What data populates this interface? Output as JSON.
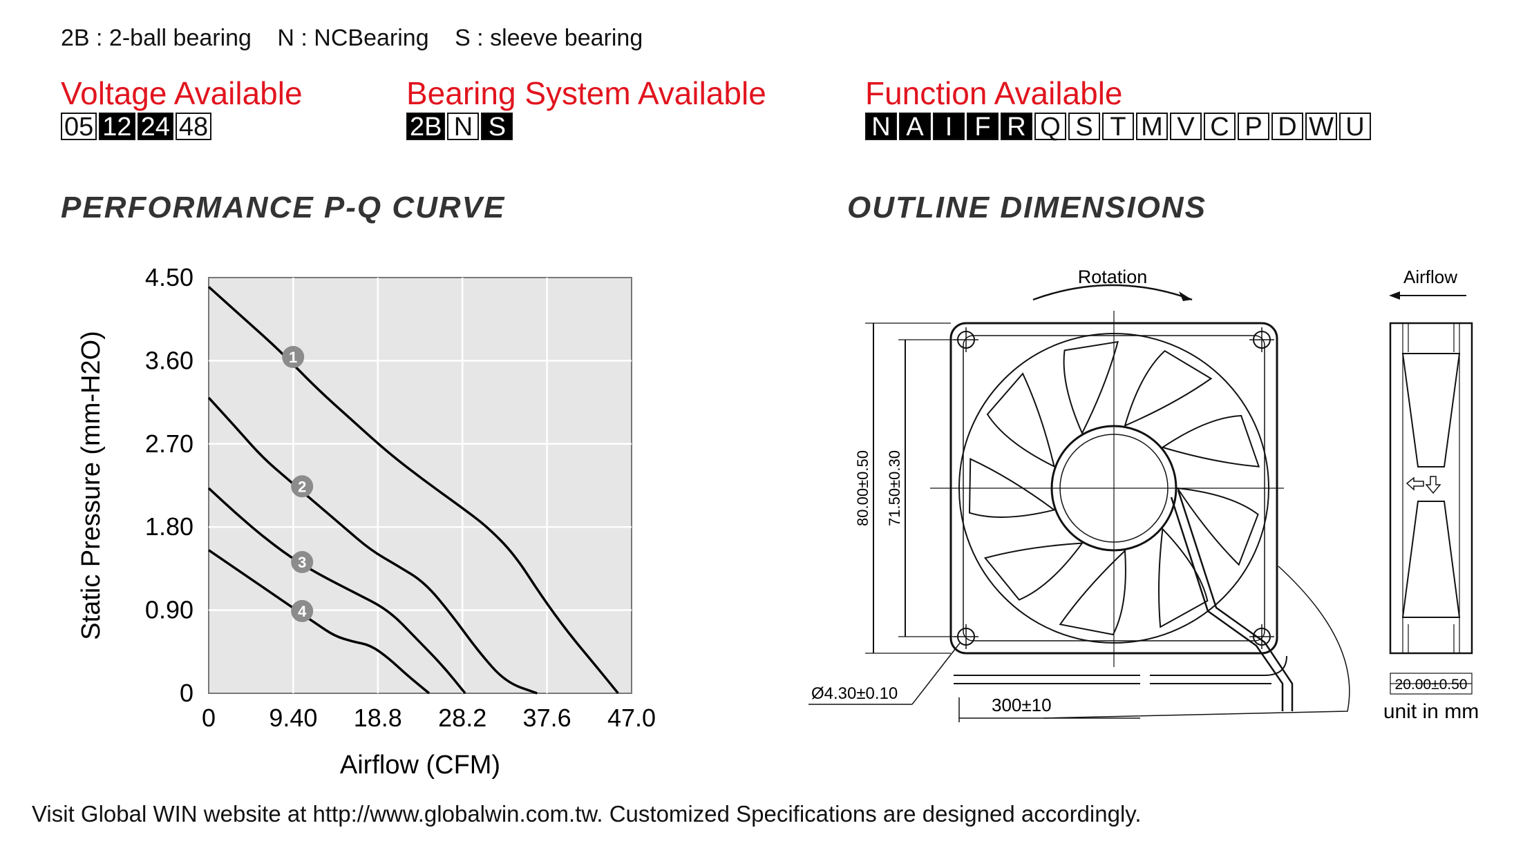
{
  "legend": {
    "b2": "2B : 2-ball bearing",
    "n": "N : NCBearing",
    "s": "S : sleeve bearing"
  },
  "voltage": {
    "title": "Voltage Available",
    "options": [
      {
        "label": "05",
        "active": false
      },
      {
        "label": "12",
        "active": true
      },
      {
        "label": "24",
        "active": true
      },
      {
        "label": "48",
        "active": false
      }
    ]
  },
  "bearing": {
    "title": "Bearing System Available",
    "options": [
      {
        "label": "2B",
        "active": true
      },
      {
        "label": "N",
        "active": false
      },
      {
        "label": "S",
        "active": true
      }
    ]
  },
  "function": {
    "title": "Function Available",
    "options": [
      {
        "label": "N",
        "active": true
      },
      {
        "label": "A",
        "active": true
      },
      {
        "label": "I",
        "active": true
      },
      {
        "label": "F",
        "active": true
      },
      {
        "label": "R",
        "active": true
      },
      {
        "label": "Q",
        "active": false
      },
      {
        "label": "S",
        "active": false
      },
      {
        "label": "T",
        "active": false
      },
      {
        "label": "M",
        "active": false
      },
      {
        "label": "V",
        "active": false
      },
      {
        "label": "C",
        "active": false
      },
      {
        "label": "P",
        "active": false
      },
      {
        "label": "D",
        "active": false
      },
      {
        "label": "W",
        "active": false
      },
      {
        "label": "U",
        "active": false
      }
    ]
  },
  "headings": {
    "pq": "PERFORMANCE P-Q CURVE",
    "outline": "OUTLINE DIMENSIONS"
  },
  "chart_data": {
    "type": "line",
    "xlabel": "Airflow (CFM)",
    "ylabel": "Static Pressure (mm-H2O)",
    "xlim": [
      0,
      47.0
    ],
    "ylim": [
      0,
      4.5
    ],
    "x_ticks": [
      "0",
      "9.40",
      "18.8",
      "28.2",
      "37.6",
      "47.0"
    ],
    "y_ticks": [
      "0",
      "0.90",
      "1.80",
      "2.70",
      "3.60",
      "4.50"
    ],
    "grid": true,
    "series": [
      {
        "name": "1",
        "points": [
          [
            0,
            4.4
          ],
          [
            4,
            4.05
          ],
          [
            8,
            3.7
          ],
          [
            12,
            3.3
          ],
          [
            16,
            2.95
          ],
          [
            20,
            2.6
          ],
          [
            24,
            2.3
          ],
          [
            28,
            2.02
          ],
          [
            31,
            1.8
          ],
          [
            34,
            1.5
          ],
          [
            37,
            1.05
          ],
          [
            40,
            0.65
          ],
          [
            43,
            0.3
          ],
          [
            45.5,
            0.0
          ]
        ]
      },
      {
        "name": "2",
        "points": [
          [
            0,
            3.2
          ],
          [
            3,
            2.88
          ],
          [
            6,
            2.55
          ],
          [
            9,
            2.3
          ],
          [
            12,
            2.05
          ],
          [
            15,
            1.8
          ],
          [
            18,
            1.55
          ],
          [
            21,
            1.38
          ],
          [
            24,
            1.2
          ],
          [
            27,
            0.85
          ],
          [
            30,
            0.45
          ],
          [
            33,
            0.12
          ],
          [
            36.5,
            0.0
          ]
        ]
      },
      {
        "name": "3",
        "points": [
          [
            0,
            2.22
          ],
          [
            3,
            1.95
          ],
          [
            6,
            1.7
          ],
          [
            9,
            1.48
          ],
          [
            12,
            1.3
          ],
          [
            16,
            1.1
          ],
          [
            20,
            0.9
          ],
          [
            23,
            0.6
          ],
          [
            26,
            0.3
          ],
          [
            28.5,
            0.0
          ]
        ]
      },
      {
        "name": "4",
        "points": [
          [
            0,
            1.55
          ],
          [
            3,
            1.35
          ],
          [
            6,
            1.15
          ],
          [
            9,
            0.95
          ],
          [
            12,
            0.75
          ],
          [
            14,
            0.62
          ],
          [
            16,
            0.56
          ],
          [
            18,
            0.52
          ],
          [
            20,
            0.38
          ],
          [
            22,
            0.2
          ],
          [
            24.5,
            0.0
          ]
        ]
      }
    ]
  },
  "outline": {
    "rotation": "Rotation",
    "airflow": "Airflow",
    "dim_outer": "80.00±0.50",
    "dim_inner": "71.50±0.30",
    "hole": "Ø4.30±0.10",
    "cable": "300±10",
    "depth": "20.00±0.50",
    "unit": "unit in mm"
  },
  "footer": "Visit Global WIN website at http://www.globalwin.com.tw. Customized Specifications are designed accordingly."
}
